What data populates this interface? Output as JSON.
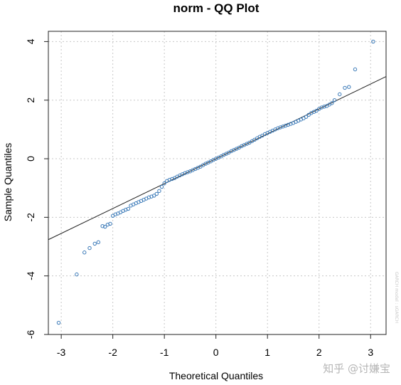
{
  "chart_data": {
    "type": "scatter",
    "title": "norm - QQ Plot",
    "xlabel": "Theoretical Quantiles",
    "ylabel": "Sample Quantiles",
    "xlim": [
      -3.25,
      3.3
    ],
    "ylim": [
      -6.0,
      4.35
    ],
    "x_ticks": [
      -3,
      -2,
      -1,
      0,
      1,
      2,
      3
    ],
    "y_ticks": [
      -6,
      -4,
      -2,
      0,
      2,
      4
    ],
    "grid": true,
    "reference_line": {
      "slope": 0.85,
      "intercept": 0.0
    },
    "series": [
      {
        "marker": "open-circle",
        "color": "#3b7ab8",
        "points": [
          [
            -3.05,
            -5.6
          ],
          [
            -2.7,
            -3.95
          ],
          [
            -2.55,
            -3.2
          ],
          [
            -2.45,
            -3.05
          ],
          [
            -2.35,
            -2.9
          ],
          [
            -2.28,
            -2.85
          ],
          [
            -2.2,
            -2.3
          ],
          [
            -2.15,
            -2.32
          ],
          [
            -2.1,
            -2.25
          ],
          [
            -2.05,
            -2.22
          ],
          [
            -2.0,
            -1.95
          ],
          [
            -1.95,
            -1.9
          ],
          [
            -1.9,
            -1.87
          ],
          [
            -1.85,
            -1.83
          ],
          [
            -1.8,
            -1.78
          ],
          [
            -1.75,
            -1.74
          ],
          [
            -1.7,
            -1.71
          ],
          [
            -1.65,
            -1.6
          ],
          [
            -1.6,
            -1.56
          ],
          [
            -1.55,
            -1.52
          ],
          [
            -1.5,
            -1.48
          ],
          [
            -1.45,
            -1.44
          ],
          [
            -1.4,
            -1.4
          ],
          [
            -1.35,
            -1.36
          ],
          [
            -1.3,
            -1.32
          ],
          [
            -1.25,
            -1.29
          ],
          [
            -1.2,
            -1.26
          ],
          [
            -1.15,
            -1.2
          ],
          [
            -1.1,
            -1.1
          ],
          [
            -1.05,
            -0.96
          ],
          [
            -1.0,
            -0.84
          ],
          [
            -0.95,
            -0.76
          ],
          [
            -0.9,
            -0.72
          ],
          [
            -0.85,
            -0.69
          ],
          [
            -0.8,
            -0.66
          ],
          [
            -0.75,
            -0.61
          ],
          [
            -0.7,
            -0.57
          ],
          [
            -0.65,
            -0.53
          ],
          [
            -0.6,
            -0.49
          ],
          [
            -0.55,
            -0.46
          ],
          [
            -0.5,
            -0.43
          ],
          [
            -0.45,
            -0.39
          ],
          [
            -0.4,
            -0.35
          ],
          [
            -0.35,
            -0.31
          ],
          [
            -0.3,
            -0.27
          ],
          [
            -0.25,
            -0.22
          ],
          [
            -0.2,
            -0.17
          ],
          [
            -0.15,
            -0.13
          ],
          [
            -0.1,
            -0.09
          ],
          [
            -0.05,
            -0.04
          ],
          [
            0.0,
            0.0
          ],
          [
            0.05,
            0.04
          ],
          [
            0.1,
            0.08
          ],
          [
            0.15,
            0.13
          ],
          [
            0.2,
            0.17
          ],
          [
            0.25,
            0.21
          ],
          [
            0.3,
            0.26
          ],
          [
            0.35,
            0.3
          ],
          [
            0.4,
            0.34
          ],
          [
            0.45,
            0.38
          ],
          [
            0.5,
            0.43
          ],
          [
            0.55,
            0.47
          ],
          [
            0.6,
            0.51
          ],
          [
            0.65,
            0.55
          ],
          [
            0.7,
            0.6
          ],
          [
            0.75,
            0.65
          ],
          [
            0.8,
            0.7
          ],
          [
            0.85,
            0.75
          ],
          [
            0.9,
            0.79
          ],
          [
            0.95,
            0.84
          ],
          [
            1.0,
            0.88
          ],
          [
            1.05,
            0.92
          ],
          [
            1.1,
            0.96
          ],
          [
            1.15,
            1.0
          ],
          [
            1.2,
            1.04
          ],
          [
            1.25,
            1.07
          ],
          [
            1.3,
            1.1
          ],
          [
            1.35,
            1.13
          ],
          [
            1.4,
            1.16
          ],
          [
            1.45,
            1.19
          ],
          [
            1.5,
            1.22
          ],
          [
            1.55,
            1.26
          ],
          [
            1.6,
            1.3
          ],
          [
            1.65,
            1.34
          ],
          [
            1.7,
            1.38
          ],
          [
            1.75,
            1.43
          ],
          [
            1.8,
            1.5
          ],
          [
            1.85,
            1.56
          ],
          [
            1.9,
            1.6
          ],
          [
            1.95,
            1.64
          ],
          [
            2.0,
            1.7
          ],
          [
            2.05,
            1.75
          ],
          [
            2.1,
            1.78
          ],
          [
            2.15,
            1.8
          ],
          [
            2.2,
            1.85
          ],
          [
            2.25,
            1.9
          ],
          [
            2.3,
            2.0
          ],
          [
            2.4,
            2.2
          ],
          [
            2.5,
            2.42
          ],
          [
            2.58,
            2.45
          ],
          [
            2.7,
            3.05
          ],
          [
            3.05,
            4.0
          ]
        ]
      }
    ]
  },
  "watermark": {
    "text": "知乎 @讨嫌宝",
    "side_note": "GARCH model : sGARCH"
  },
  "colors": {
    "points": "#3b7ab8",
    "line": "#222222",
    "grid": "#c8c8c8",
    "box": "#222222"
  }
}
